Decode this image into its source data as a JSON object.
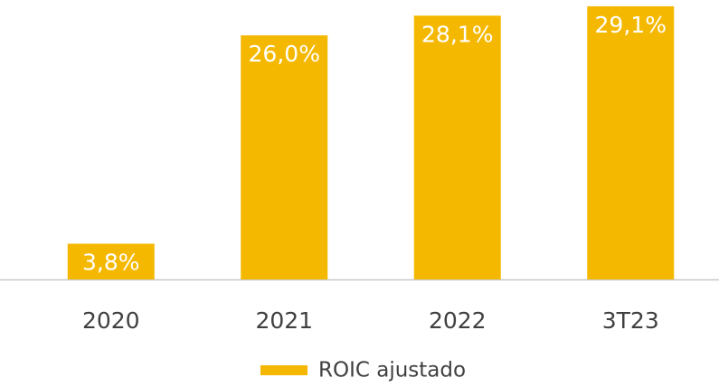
{
  "chart_data": {
    "type": "bar",
    "categories": [
      "2020",
      "2021",
      "2022",
      "3T23"
    ],
    "series": [
      {
        "name": "ROIC ajustado",
        "color": "#f5b800",
        "values": [
          3.8,
          26.0,
          28.1,
          29.1
        ],
        "value_labels": [
          "3,8%",
          "26,0%",
          "28,1%",
          "29,1%"
        ]
      }
    ],
    "legend": "bottom"
  }
}
